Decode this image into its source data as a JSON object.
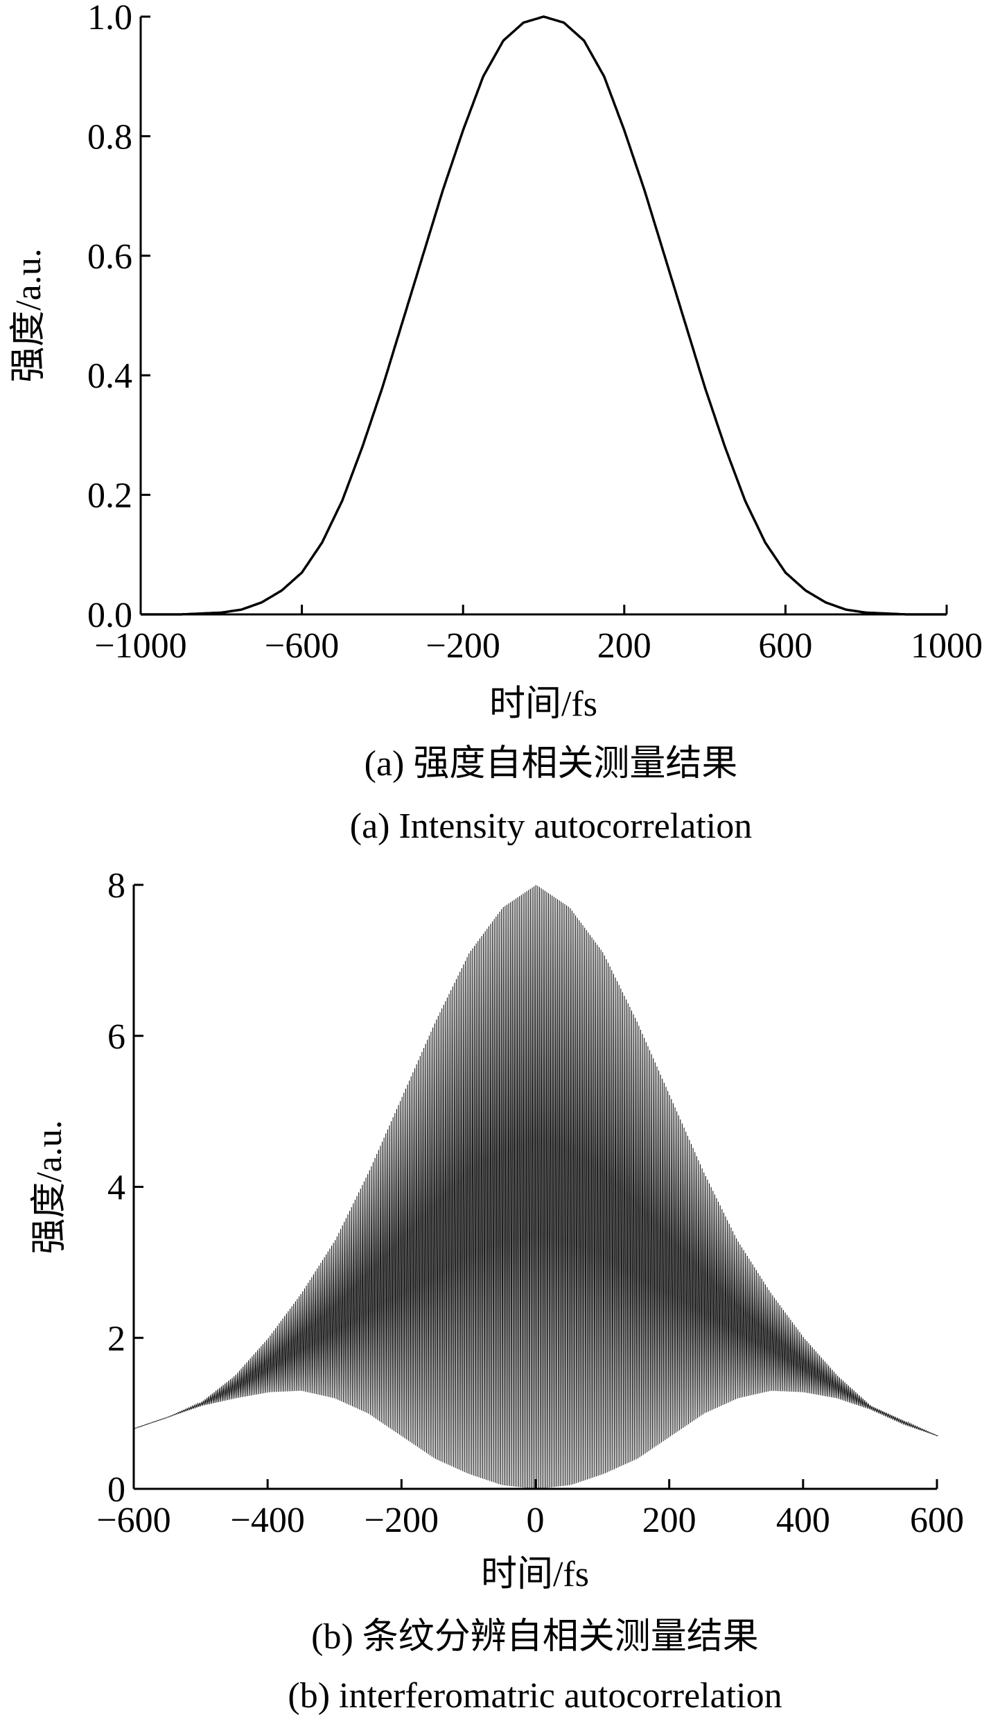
{
  "chart_data": [
    {
      "type": "line",
      "caption_cn": "(a) 强度自相关测量结果",
      "caption_en": "(a) Intensity autocorrelation",
      "xlabel": "时间/fs",
      "ylabel": "强度/a.u.",
      "xlim": [
        -1000,
        1000
      ],
      "ylim": [
        0,
        1.0
      ],
      "xticks": [
        -1000,
        -600,
        -200,
        200,
        600,
        1000
      ],
      "xtick_labels": [
        "−1000",
        "−600",
        "−200",
        "200",
        "600",
        "1000"
      ],
      "yticks": [
        0.0,
        0.2,
        0.4,
        0.6,
        0.8,
        1.0
      ],
      "ytick_labels": [
        "0.0",
        "0.2",
        "0.4",
        "0.6",
        "0.8",
        "1.0"
      ],
      "grid": false,
      "series": [
        {
          "x": [
            -1000,
            -900,
            -800,
            -750,
            -700,
            -650,
            -600,
            -550,
            -500,
            -450,
            -400,
            -350,
            -300,
            -250,
            -200,
            -150,
            -100,
            -50,
            0,
            50,
            100,
            150,
            200,
            250,
            300,
            350,
            400,
            450,
            500,
            550,
            600,
            650,
            700,
            750,
            800,
            900,
            1000
          ],
          "y": [
            0.0,
            0.0,
            0.003,
            0.008,
            0.02,
            0.04,
            0.07,
            0.12,
            0.19,
            0.28,
            0.38,
            0.49,
            0.6,
            0.71,
            0.81,
            0.9,
            0.96,
            0.99,
            1.0,
            0.99,
            0.96,
            0.9,
            0.81,
            0.71,
            0.6,
            0.49,
            0.38,
            0.28,
            0.19,
            0.12,
            0.07,
            0.04,
            0.02,
            0.008,
            0.003,
            0.0,
            0.0
          ]
        }
      ]
    },
    {
      "type": "line",
      "caption_cn": "(b) 条纹分辨自相关测量结果",
      "caption_en": "(b) interferomatric autocorrelation",
      "xlabel": "时间/fs",
      "ylabel": "强度/a.u.",
      "xlim": [
        -600,
        600
      ],
      "ylim": [
        0,
        8
      ],
      "xticks": [
        -600,
        -400,
        -200,
        0,
        200,
        400,
        600
      ],
      "xtick_labels": [
        "−600",
        "−400",
        "−200",
        "0",
        "200",
        "400",
        "600"
      ],
      "yticks": [
        0,
        2,
        4,
        6,
        8
      ],
      "ytick_labels": [
        "0",
        "2",
        "4",
        "6",
        "8"
      ],
      "grid": false,
      "series": [
        {
          "x": [
            -600,
            -550,
            -500,
            -450,
            -400,
            -350,
            -300,
            -250,
            -200,
            -150,
            -100,
            -50,
            0,
            50,
            100,
            150,
            200,
            250,
            300,
            350,
            400,
            450,
            500,
            550,
            600
          ],
          "upper_envelope": [
            0.8,
            0.95,
            1.15,
            1.5,
            2.0,
            2.6,
            3.3,
            4.2,
            5.2,
            6.2,
            7.1,
            7.7,
            8.0,
            7.7,
            7.1,
            6.2,
            5.2,
            4.2,
            3.3,
            2.6,
            2.0,
            1.5,
            1.1,
            0.9,
            0.7
          ],
          "lower_envelope": [
            0.8,
            0.95,
            1.1,
            1.2,
            1.28,
            1.3,
            1.2,
            1.0,
            0.7,
            0.4,
            0.2,
            0.05,
            0.0,
            0.05,
            0.2,
            0.4,
            0.7,
            1.0,
            1.2,
            1.3,
            1.28,
            1.2,
            1.05,
            0.85,
            0.7
          ]
        }
      ]
    }
  ]
}
